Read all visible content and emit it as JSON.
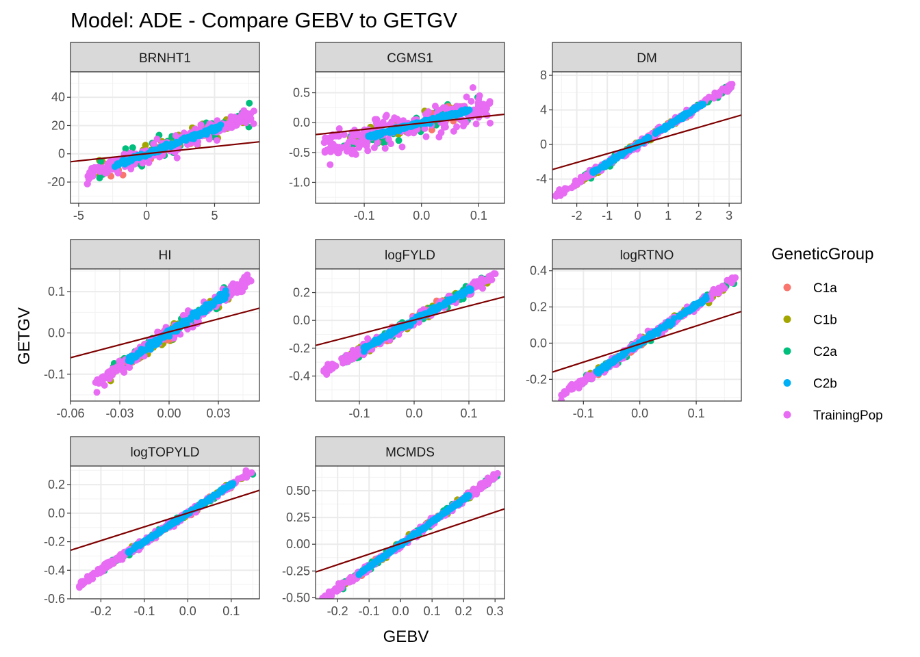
{
  "title": "Model: ADE - Compare GEBV to GETGV",
  "xlabel": "GEBV",
  "ylabel": "GETGV",
  "legend": {
    "title": "GeneticGroup",
    "items": [
      {
        "label": "C1a",
        "color": "#F8766D"
      },
      {
        "label": "C1b",
        "color": "#A3A500"
      },
      {
        "label": "C2a",
        "color": "#00BF7D"
      },
      {
        "label": "C2b",
        "color": "#00B0F6"
      },
      {
        "label": "TrainingPop",
        "color": "#E76BF3"
      }
    ]
  },
  "fit_line_color": "#7F0000",
  "chart_data": [
    {
      "type": "scatter",
      "panel": "BRNHT1",
      "xlim": [
        -5.6,
        8.3
      ],
      "ylim": [
        -35,
        58
      ],
      "xticks": [
        -5,
        0,
        5
      ],
      "xtick_labels": [
        "-5",
        "0",
        "5"
      ],
      "yticks": [
        -20,
        0,
        20,
        40
      ],
      "ytick_labels": [
        "-20",
        "0",
        "20",
        "40"
      ],
      "line": [
        [
          -5.6,
          -5.6
        ],
        [
          8.3,
          8.5
        ]
      ],
      "cloud": {
        "slope": 3.5,
        "xmin": -4.4,
        "xmax": 7.9,
        "yoff": 0,
        "tp_spread": 9,
        "grp_spread": 11,
        "c2b_spread": 2
      }
    },
    {
      "type": "scatter",
      "panel": "CGMS1",
      "xlim": [
        -0.185,
        0.145
      ],
      "ylim": [
        -1.35,
        0.85
      ],
      "xticks": [
        -0.1,
        0.0,
        0.1
      ],
      "xtick_labels": [
        "-0.1",
        "0.0",
        "0.1"
      ],
      "yticks": [
        -1.0,
        -0.5,
        0.0,
        0.5
      ],
      "ytick_labels": [
        "-1.0",
        "-0.5",
        "0.0",
        "0.5"
      ],
      "line": [
        [
          -0.185,
          -0.2
        ],
        [
          0.145,
          0.14
        ]
      ],
      "cloud": {
        "slope": 2.5,
        "xmin": -0.17,
        "xmax": 0.12,
        "yoff": 0,
        "tp_spread": 0.35,
        "grp_spread": 0.2,
        "c2b_spread": 0.04
      }
    },
    {
      "type": "scatter",
      "panel": "DM",
      "xlim": [
        -2.8,
        3.4
      ],
      "ylim": [
        -6.8,
        8.4
      ],
      "xticks": [
        -2,
        -1,
        0,
        1,
        2,
        3
      ],
      "xtick_labels": [
        "-2",
        "-1",
        "0",
        "1",
        "2",
        "3"
      ],
      "yticks": [
        -4,
        0,
        4,
        8
      ],
      "ytick_labels": [
        "-4",
        "0",
        "4",
        "8"
      ],
      "line": [
        [
          -2.8,
          -2.9
        ],
        [
          3.4,
          3.4
        ]
      ],
      "cloud": {
        "slope": 2.2,
        "xmin": -2.7,
        "xmax": 3.1,
        "yoff": 0,
        "tp_spread": 0.5,
        "grp_spread": 0.5,
        "c2b_spread": 0.25
      }
    },
    {
      "type": "scatter",
      "panel": "HI",
      "xlim": [
        -0.06,
        0.055
      ],
      "ylim": [
        -0.165,
        0.155
      ],
      "xticks": [
        -0.06,
        -0.03,
        0.0,
        0.03
      ],
      "xtick_labels": [
        "-0.06",
        "-0.03",
        "0.00",
        "0.03"
      ],
      "yticks": [
        -0.1,
        0.0,
        0.1
      ],
      "ytick_labels": [
        "-0.1",
        "0.0",
        "0.1"
      ],
      "line": [
        [
          -0.06,
          -0.06
        ],
        [
          0.055,
          0.06
        ]
      ],
      "cloud": {
        "slope": 2.7,
        "xmin": -0.045,
        "xmax": 0.05,
        "yoff": 0,
        "tp_spread": 0.025,
        "grp_spread": 0.025,
        "c2b_spread": 0.01
      }
    },
    {
      "type": "scatter",
      "panel": "logFYLD",
      "xlim": [
        -0.18,
        0.165
      ],
      "ylim": [
        -0.58,
        0.37
      ],
      "xticks": [
        -0.1,
        0.0,
        0.1
      ],
      "xtick_labels": [
        "-0.1",
        "0.0",
        "0.1"
      ],
      "yticks": [
        -0.4,
        -0.2,
        0.0,
        0.2
      ],
      "ytick_labels": [
        "-0.4",
        "-0.2",
        "0.0",
        "0.2"
      ],
      "line": [
        [
          -0.18,
          -0.18
        ],
        [
          0.165,
          0.17
        ]
      ],
      "cloud": {
        "slope": 2.2,
        "xmin": -0.17,
        "xmax": 0.15,
        "yoff": 0,
        "tp_spread": 0.05,
        "grp_spread": 0.05,
        "c2b_spread": 0.02
      }
    },
    {
      "type": "scatter",
      "panel": "logRTNO",
      "xlim": [
        -0.155,
        0.18
      ],
      "ylim": [
        -0.32,
        0.41
      ],
      "xticks": [
        -0.1,
        0.0,
        0.1
      ],
      "xtick_labels": [
        "-0.1",
        "0.0",
        "0.1"
      ],
      "yticks": [
        -0.2,
        0.0,
        0.2,
        0.4
      ],
      "ytick_labels": [
        "-0.2",
        "0.0",
        "0.2",
        "0.4"
      ],
      "line": [
        [
          -0.155,
          -0.16
        ],
        [
          0.18,
          0.175
        ]
      ],
      "cloud": {
        "slope": 2.1,
        "xmin": -0.14,
        "xmax": 0.17,
        "yoff": 0,
        "tp_spread": 0.03,
        "grp_spread": 0.03,
        "c2b_spread": 0.015
      }
    },
    {
      "type": "scatter",
      "panel": "logTOPYLD",
      "xlim": [
        -0.27,
        0.165
      ],
      "ylim": [
        -0.6,
        0.33
      ],
      "xticks": [
        -0.2,
        -0.1,
        0.0,
        0.1
      ],
      "xtick_labels": [
        "-0.2",
        "-0.1",
        "0.0",
        "0.1"
      ],
      "yticks": [
        -0.6,
        -0.4,
        -0.2,
        0.0,
        0.2
      ],
      "ytick_labels": [
        "-0.6",
        "-0.4",
        "-0.2",
        "0.0",
        "0.2"
      ],
      "line": [
        [
          -0.27,
          -0.26
        ],
        [
          0.165,
          0.16
        ]
      ],
      "cloud": {
        "slope": 2.0,
        "xmin": -0.25,
        "xmax": 0.15,
        "yoff": 0,
        "tp_spread": 0.03,
        "grp_spread": 0.03,
        "c2b_spread": 0.012
      }
    },
    {
      "type": "scatter",
      "panel": "MCMDS",
      "xlim": [
        -0.27,
        0.33
      ],
      "ylim": [
        -0.51,
        0.73
      ],
      "xticks": [
        -0.2,
        -0.1,
        0.0,
        0.1,
        0.2,
        0.3
      ],
      "xtick_labels": [
        "-0.2",
        "-0.1",
        "0.0",
        "0.1",
        "0.2",
        "0.3"
      ],
      "yticks": [
        -0.5,
        -0.25,
        0.0,
        0.25,
        0.5
      ],
      "ytick_labels": [
        "-0.50",
        "-0.25",
        "0.00",
        "0.25",
        "0.50"
      ],
      "line": [
        [
          -0.27,
          -0.26
        ],
        [
          0.33,
          0.33
        ]
      ],
      "cloud": {
        "slope": 2.1,
        "xmin": -0.25,
        "xmax": 0.31,
        "yoff": 0,
        "tp_spread": 0.04,
        "grp_spread": 0.04,
        "c2b_spread": 0.015
      }
    }
  ]
}
